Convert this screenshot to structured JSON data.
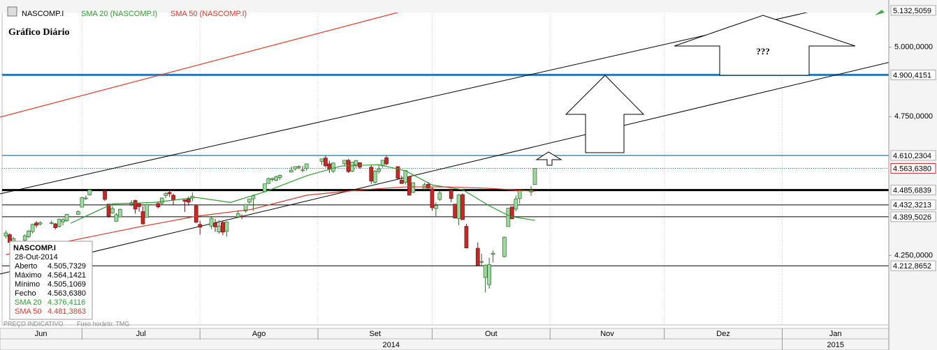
{
  "chart_data": {
    "type": "candlestick",
    "title": "Gráfico Diário",
    "symbol": "NASCOMP.I",
    "annotation": "???",
    "footer_note": "PREÇO INDICATIVO",
    "timezone": "Fuso horário: TMG",
    "xlim": [
      9,
      242
    ],
    "xticks": [
      {
        "value": 0,
        "label": "Jun"
      },
      {
        "value": 30,
        "label": "Jul"
      },
      {
        "value": 61,
        "label": "Ago"
      },
      {
        "value": 92,
        "label": "Set"
      },
      {
        "value": 122,
        "label": "Out"
      },
      {
        "value": 153,
        "label": "Nov"
      },
      {
        "value": 183,
        "label": "Dez"
      },
      {
        "value": 214,
        "label": "Jan"
      }
    ],
    "year_ticks": [
      {
        "value": -151,
        "label": "2014"
      },
      {
        "value": 214,
        "label": "2015"
      }
    ],
    "ylim": [
      4000,
      5150
    ],
    "yticks": [
      {
        "value": 4250,
        "label": "4.250,0000"
      },
      {
        "value": 4750,
        "label": "4.750,0000"
      },
      {
        "value": 5000,
        "label": "5.000,0000"
      }
    ],
    "grid": true,
    "up_color": "#9ed99e",
    "down_color": "#c62828",
    "x": [
      10,
      11,
      12,
      15,
      16,
      17,
      18,
      19,
      22,
      23,
      24,
      25,
      26,
      29,
      30,
      31,
      32,
      36,
      37,
      38,
      39,
      40,
      43,
      44,
      45,
      46,
      47,
      50,
      51,
      52,
      53,
      54,
      57,
      58,
      59,
      60,
      61,
      64,
      65,
      66,
      67,
      68,
      71,
      72,
      73,
      74,
      75,
      78,
      79,
      80,
      81,
      82,
      85,
      86,
      87,
      88,
      89,
      93,
      94,
      95,
      96,
      99,
      100,
      101,
      102,
      103,
      106,
      107,
      108,
      109,
      110,
      113,
      114,
      115,
      116,
      117,
      120,
      121,
      122,
      123,
      124,
      127,
      128,
      129,
      130,
      131,
      134,
      135,
      136,
      137,
      138,
      141,
      142,
      143,
      144,
      145,
      148,
      149
    ],
    "open": [
      4320,
      4325,
      4300,
      4305,
      4318,
      4336,
      4367,
      4363,
      4367,
      4364,
      4355,
      4371,
      4375,
      4398,
      4424,
      4455,
      4468,
      4483,
      4435,
      4403,
      4373,
      4389,
      4434,
      4448,
      4436,
      4408,
      4387,
      4437,
      4438,
      4466,
      4477,
      4467,
      4450,
      4454,
      4458,
      4429,
      4362,
      4356,
      4367,
      4335,
      4369,
      4337,
      4389,
      4392,
      4410,
      4442,
      4454,
      4480,
      4509,
      4524,
      4521,
      4531,
      4550,
      4562,
      4570,
      4556,
      4564,
      4589,
      4601,
      4580,
      4554,
      4580,
      4593,
      4554,
      4576,
      4584,
      4568,
      4513,
      4553,
      4573,
      4602,
      4570,
      4521,
      4513,
      4534,
      4477,
      4489,
      4506,
      4490,
      4419,
      4452,
      4485,
      4435,
      4383,
      4469,
      4355,
      4276,
      4227,
      4171,
      4145,
      4254,
      4246,
      4354,
      4425,
      4417,
      4455,
      4479,
      4505.7329
    ],
    "high": [
      4340,
      4330,
      4316,
      4326,
      4342,
      4364,
      4374,
      4373,
      4376,
      4367,
      4383,
      4385,
      4400,
      4413,
      4461,
      4466,
      4489,
      4487,
      4435,
      4428,
      4403,
      4419,
      4449,
      4451,
      4438,
      4428,
      4436,
      4445,
      4459,
      4478,
      4486,
      4472,
      4451,
      4462,
      4477,
      4432,
      4375,
      4389,
      4382,
      4378,
      4375,
      4372,
      4413,
      4398,
      4436,
      4454,
      4469,
      4509,
      4531,
      4531,
      4538,
      4541,
      4570,
      4570,
      4575,
      4573,
      4580,
      4599,
      4610,
      4591,
      4585,
      4594,
      4598,
      4587,
      4594,
      4586,
      4575,
      4558,
      4579,
      4594,
      4610,
      4571,
      4537,
      4557,
      4535,
      4513,
      4512,
      4515,
      4496,
      4441,
      4483,
      4486,
      4435,
      4471,
      4474,
      4364,
      4297,
      4256,
      4218,
      4242,
      4268,
      4318,
      4421,
      4426,
      4466,
      4485,
      4500,
      4564.1421
    ],
    "low": [
      4312,
      4290,
      4293,
      4296,
      4313,
      4330,
      4350,
      4358,
      4362,
      4344,
      4350,
      4358,
      4371,
      4397,
      4424,
      4450,
      4466,
      4446,
      4386,
      4400,
      4371,
      4387,
      4427,
      4400,
      4408,
      4361,
      4387,
      4420,
      4432,
      4457,
      4461,
      4433,
      4407,
      4429,
      4445,
      4366,
      4325,
      4345,
      4335,
      4328,
      4323,
      4318,
      4386,
      4381,
      4404,
      4436,
      4411,
      4480,
      4509,
      4517,
      4517,
      4522,
      4550,
      4556,
      4561,
      4550,
      4555,
      4576,
      4567,
      4547,
      4547,
      4572,
      4547,
      4550,
      4566,
      4562,
      4508,
      4509,
      4545,
      4567,
      4575,
      4523,
      4508,
      4505,
      4466,
      4475,
      4487,
      4487,
      4411,
      4388,
      4447,
      4442,
      4383,
      4359,
      4378,
      4276,
      4213,
      4211,
      4117,
      4131,
      4225,
      4243,
      4354,
      4381,
      4410,
      4436,
      4465,
      4505.1069
    ],
    "close": [
      4331,
      4297,
      4311,
      4321,
      4338,
      4362,
      4359,
      4368,
      4368,
      4350,
      4380,
      4379,
      4398,
      4408,
      4458,
      4457,
      4486,
      4452,
      4391,
      4419,
      4397,
      4416,
      4440,
      4417,
      4426,
      4364,
      4433,
      4425,
      4457,
      4473,
      4472,
      4449,
      4445,
      4442,
      4463,
      4370,
      4352,
      4384,
      4353,
      4356,
      4334,
      4371,
      4401,
      4390,
      4434,
      4453,
      4465,
      4508,
      4527,
      4527,
      4533,
      4539,
      4557,
      4570,
      4570,
      4558,
      4580,
      4598,
      4573,
      4562,
      4583,
      4593,
      4552,
      4586,
      4592,
      4568,
      4518,
      4553,
      4562,
      4593,
      4580,
      4528,
      4509,
      4556,
      4467,
      4512,
      4505,
      4493,
      4422,
      4430,
      4475,
      4455,
      4385,
      4468,
      4379,
      4277,
      4214,
      4228,
      4215,
      4217,
      4258,
      4316,
      4420,
      4382,
      4453,
      4483,
      4485,
      4563.638
    ],
    "series": [
      {
        "name": "SMA 20 (NASCOMP.I)",
        "color": "#2e9a2e",
        "x": [
          27,
          38,
          49,
          60,
          69,
          78,
          89,
          98,
          108,
          115,
          122,
          130,
          137,
          142.5,
          149
        ],
        "values": [
          4366,
          4436,
          4441,
          4459,
          4441,
          4479,
          4537,
          4572,
          4577,
          4555,
          4504,
          4487,
          4429,
          4391,
          4376.4116
        ]
      },
      {
        "name": "SMA 50 (NASCOMP.I)",
        "color": "#d23a2a",
        "x": [
          10,
          27,
          45,
          60,
          74.5,
          89,
          104,
          115,
          126,
          137,
          149
        ],
        "values": [
          4253,
          4303,
          4353,
          4391,
          4416,
          4467,
          4487,
          4497,
          4497,
          4492,
          4481.3863
        ]
      }
    ],
    "hlines": [
      {
        "value": 5132.5059,
        "label": "5.132,5059",
        "color": "#8c8c8c",
        "width": 3
      },
      {
        "value": 4900.4151,
        "label": "4.900,4151",
        "color": "#2a78b5",
        "width": 3
      },
      {
        "value": 4610.2304,
        "label": "4.610,2304",
        "color": "#3d8fbf",
        "width": 1.5
      },
      {
        "value": 4563.638,
        "label": "4.563,6380",
        "color": "#c83232",
        "width": 1,
        "dashed": true
      },
      {
        "value": 4485.6839,
        "label": "4.485,6839",
        "color": "#000000",
        "width": 3
      },
      {
        "value": 4432.3213,
        "label": "4.432,3213",
        "color": "#000000",
        "width": 1
      },
      {
        "value": 4389.5026,
        "label": "4.389,5026",
        "color": "#000000",
        "width": 1
      },
      {
        "value": 4212.8652,
        "label": "4.212,8652",
        "color": "#000000",
        "width": 1
      }
    ],
    "info_box": {
      "symbol": "NASCOMP.I",
      "date": "28-Out-2014",
      "rows": [
        {
          "name": "Aberto",
          "value": "4.505,7329",
          "color": "#000000"
        },
        {
          "name": "Máximo",
          "value": "4.564,1421",
          "color": "#000000"
        },
        {
          "name": "Mínimo",
          "value": "4.505,1069",
          "color": "#000000"
        },
        {
          "name": "Fecho",
          "value": "4.563,6380",
          "color": "#000000"
        },
        {
          "name": "SMA 20",
          "value": "4.376,4116",
          "color": "#2e9a2e"
        },
        {
          "name": "SMA 50",
          "value": "4.481,3863",
          "color": "#d23a2a"
        }
      ]
    }
  }
}
